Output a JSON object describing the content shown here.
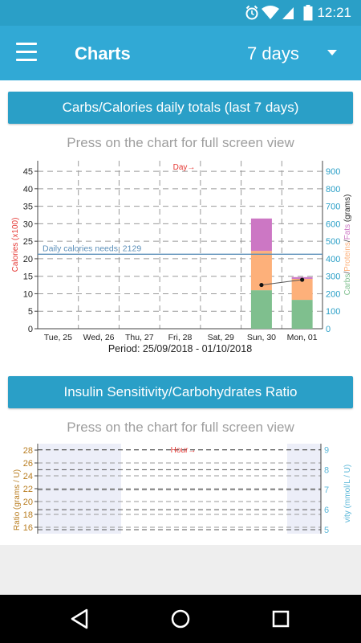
{
  "status_bar": {
    "time": "12:21",
    "icons": [
      "alarm-icon",
      "wifi-icon",
      "signal-icon",
      "battery-icon"
    ]
  },
  "app_bar": {
    "title": "Charts",
    "period": "7 days"
  },
  "colors": {
    "primary": "#31a9d5",
    "header": "#2a9fc7",
    "carbs": "#7fbf8e",
    "proteins": "#fdb07a",
    "fats": "#cc77c4",
    "calories_line": "#5b8fb9",
    "red_label": "#e53935",
    "orange_label": "#b87c1e",
    "blue_label": "#5bb7d8"
  },
  "section1": {
    "header": "Carbs/Calories daily totals (last 7 days)",
    "hint": "Press on the chart for full screen view"
  },
  "section2": {
    "header": "Insulin Sensitivity/Carbohydrates Ratio",
    "hint": "Press on the chart for full screen view"
  },
  "chart_data": [
    {
      "type": "bar",
      "stacked": true,
      "x_title": "Day→",
      "period": "Period: 25/09/2018 - 01/10/2018",
      "categories": [
        "Tue, 25",
        "Wed, 26",
        "Thu, 27",
        "Fri, 28",
        "Sat, 29",
        "Sun, 30",
        "Mon, 01"
      ],
      "y_left": {
        "label": "Calories (x100)",
        "ticks": [
          0,
          5,
          10,
          15,
          20,
          25,
          30,
          35,
          40,
          45
        ],
        "range": [
          0,
          48
        ]
      },
      "y_right": {
        "label_parts": [
          "Carbs",
          "/",
          "Proteins",
          "/",
          "Fats",
          " (grams)"
        ],
        "ticks": [
          0,
          100,
          200,
          300,
          400,
          500,
          600,
          700,
          800,
          900
        ],
        "range": [
          0,
          960
        ]
      },
      "series": [
        {
          "name": "Carbs",
          "color_key": "carbs",
          "values": [
            0,
            0,
            0,
            0,
            0,
            220,
            165
          ]
        },
        {
          "name": "Proteins",
          "color_key": "proteins",
          "values": [
            0,
            0,
            0,
            0,
            0,
            225,
            120
          ]
        },
        {
          "name": "Fats",
          "color_key": "fats",
          "values": [
            0,
            0,
            0,
            0,
            0,
            185,
            10
          ]
        }
      ],
      "calories_points": [
        {
          "category": "Sun, 30",
          "value": 12.5
        },
        {
          "category": "Mon, 01",
          "value": 14.0
        }
      ],
      "reference": {
        "label": "Daily calories needs: 2129",
        "value": 21.29
      },
      "grid": "dashed"
    },
    {
      "type": "line",
      "x_title": "Hour→",
      "y_left": {
        "label": "Ratio (grams / U)",
        "ticks": [
          16,
          18,
          20,
          22,
          24,
          26,
          28
        ],
        "range": [
          15,
          29
        ]
      },
      "y_right": {
        "label": "vity (mmol/L / U)",
        "ticks": [
          5,
          6,
          7,
          8,
          9
        ],
        "range": [
          4.8,
          9.3
        ]
      },
      "grid": "dashed"
    }
  ]
}
